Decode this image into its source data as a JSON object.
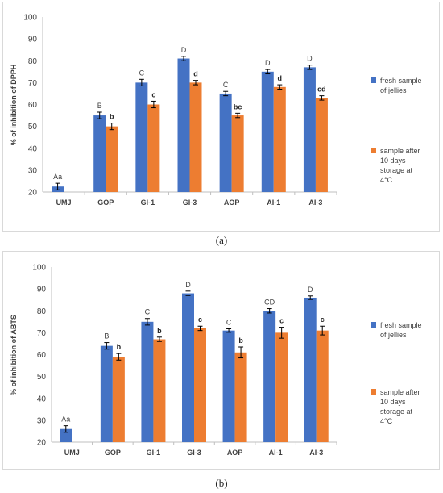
{
  "chart_data": [
    {
      "type": "bar",
      "panel_label": "(a)",
      "categories": [
        "UMJ",
        "GOP",
        "GI-1",
        "GI-3",
        "AOP",
        "AI-1",
        "AI-3"
      ],
      "ylabel": "% of inhibition of DPPH",
      "xlabel": "",
      "ylim": [
        20,
        100
      ],
      "yticks": [
        20,
        30,
        40,
        50,
        60,
        70,
        80,
        90,
        100
      ],
      "grid": false,
      "legend_position": "right",
      "series": [
        {
          "name": "fresh sample of jellies",
          "legend_lines": [
            "fresh  sample",
            "of jellies"
          ],
          "color": "#4472C4",
          "values": [
            22.5,
            55,
            70,
            81,
            65,
            75,
            77
          ],
          "errors": [
            1.5,
            1.5,
            1.5,
            1.0,
            1.0,
            1.0,
            1.0
          ],
          "labels": [
            "Aa",
            "B",
            "C",
            "D",
            "C",
            "D",
            "D"
          ]
        },
        {
          "name": "sample after 10 days storage at 4°C",
          "legend_lines": [
            "sample after",
            "10 days",
            "storage at",
            "4°C"
          ],
          "color": "#ED7D31",
          "values": [
            null,
            50,
            60,
            70,
            55,
            68,
            63
          ],
          "errors": [
            null,
            1.5,
            1.5,
            1.0,
            1.0,
            1.0,
            1.0
          ],
          "labels": [
            "",
            "b",
            "c",
            "d",
            "bc",
            "d",
            "cd"
          ]
        }
      ]
    },
    {
      "type": "bar",
      "panel_label": "(b)",
      "categories": [
        "UMJ",
        "GOP",
        "GI-1",
        "GI-3",
        "AOP",
        "AI-1",
        "AI-3"
      ],
      "ylabel": "% of inhibition of ABTS",
      "xlabel": "",
      "ylim": [
        20,
        100
      ],
      "yticks": [
        20,
        30,
        40,
        50,
        60,
        70,
        80,
        90,
        100
      ],
      "grid": false,
      "legend_position": "right",
      "series": [
        {
          "name": "fresh sample of jellies",
          "legend_lines": [
            "fresh  sample",
            "of jellies"
          ],
          "color": "#4472C4",
          "values": [
            26,
            64,
            75,
            88,
            71,
            80,
            86
          ],
          "errors": [
            1.5,
            1.5,
            1.5,
            1.0,
            0.8,
            1.0,
            0.8
          ],
          "labels": [
            "Aa",
            "B",
            "C",
            "D",
            "C",
            "CD",
            "D"
          ]
        },
        {
          "name": "sample after 10 days storage at 4°C",
          "legend_lines": [
            "sample after",
            "10 days",
            "storage at",
            "4°C"
          ],
          "color": "#ED7D31",
          "values": [
            null,
            59,
            67,
            72,
            61,
            70,
            71
          ],
          "errors": [
            null,
            1.5,
            1.0,
            1.0,
            2.5,
            2.5,
            2.0
          ],
          "labels": [
            "",
            "b",
            "b",
            "c",
            "b",
            "c",
            "c"
          ]
        }
      ]
    }
  ]
}
